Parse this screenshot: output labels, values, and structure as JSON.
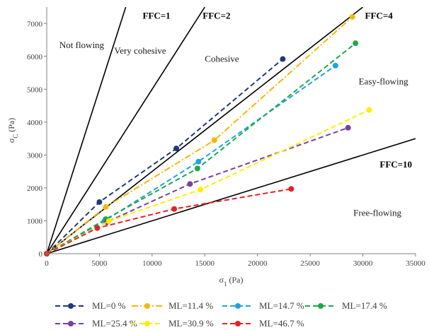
{
  "chart_data": {
    "type": "scatter",
    "xlabel": "σ",
    "xlabel_sub": "1",
    "xlabel_unit": " (Pa)",
    "ylabel": "σ",
    "ylabel_sub": "C",
    "ylabel_unit": " (Pa)",
    "xlim": [
      0,
      35000
    ],
    "ylim": [
      0,
      7500
    ],
    "x_ticks": [
      0,
      5000,
      10000,
      15000,
      20000,
      25000,
      30000,
      35000
    ],
    "y_ticks": [
      0,
      1000,
      2000,
      3000,
      4000,
      5000,
      6000,
      7000
    ],
    "grid": false,
    "legend_position": "bottom",
    "ffc_lines": [
      {
        "name": "FFC=1",
        "ffc": 1,
        "label_at": [
          9100,
          7150
        ]
      },
      {
        "name": "FFC=2",
        "ffc": 2,
        "label_at": [
          14800,
          7150
        ]
      },
      {
        "name": "FFC=4",
        "ffc": 4,
        "label_at": [
          30200,
          7150
        ]
      },
      {
        "name": "FFC=10",
        "ffc": 10,
        "label_at": [
          31600,
          2620
        ]
      }
    ],
    "regions": [
      {
        "label": "Not flowing",
        "at": [
          1200,
          6250
        ]
      },
      {
        "label": "Very cohesive",
        "at": [
          6400,
          6080
        ]
      },
      {
        "label": "Cohesive",
        "at": [
          15000,
          5830
        ]
      },
      {
        "label": "Easy-flowing",
        "at": [
          29600,
          5150
        ]
      },
      {
        "label": "Free-flowing",
        "at": [
          29100,
          1150
        ]
      }
    ],
    "series": [
      {
        "name": "ML=0 %",
        "color": "#1f3a7a",
        "dash": "dashed",
        "x": [
          0,
          5000,
          12300,
          22400
        ],
        "y": [
          0,
          1570,
          3200,
          5920
        ]
      },
      {
        "name": "ML=11.4 %",
        "color": "#f5b800",
        "dash": "dashdot",
        "x": [
          0,
          5600,
          15900,
          29000
        ],
        "y": [
          0,
          1420,
          3450,
          7200
        ]
      },
      {
        "name": "ML=14.7 %",
        "color": "#1fa3e0",
        "dash": "dashed",
        "x": [
          0,
          5500,
          14400,
          27400
        ],
        "y": [
          0,
          1000,
          2800,
          5720
        ]
      },
      {
        "name": "ML=17.4 %",
        "color": "#1ea84a",
        "dash": "dashed",
        "x": [
          0,
          5600,
          14300,
          29300
        ],
        "y": [
          0,
          1050,
          2590,
          6400
        ]
      },
      {
        "name": "ML=25.4 %",
        "color": "#7b3fa0",
        "dash": "dashed",
        "x": [
          0,
          5700,
          13600,
          28600
        ],
        "y": [
          0,
          960,
          2120,
          3830
        ]
      },
      {
        "name": "ML=30.9 %",
        "color": "#ffee00",
        "dash": "dashed",
        "x": [
          0,
          5900,
          14600,
          30600
        ],
        "y": [
          0,
          990,
          1950,
          4370
        ]
      },
      {
        "name": "ML=46.7 %",
        "color": "#e82020",
        "dash": "dashed",
        "x": [
          0,
          4800,
          12100,
          23200
        ],
        "y": [
          0,
          780,
          1360,
          1970
        ]
      }
    ]
  }
}
